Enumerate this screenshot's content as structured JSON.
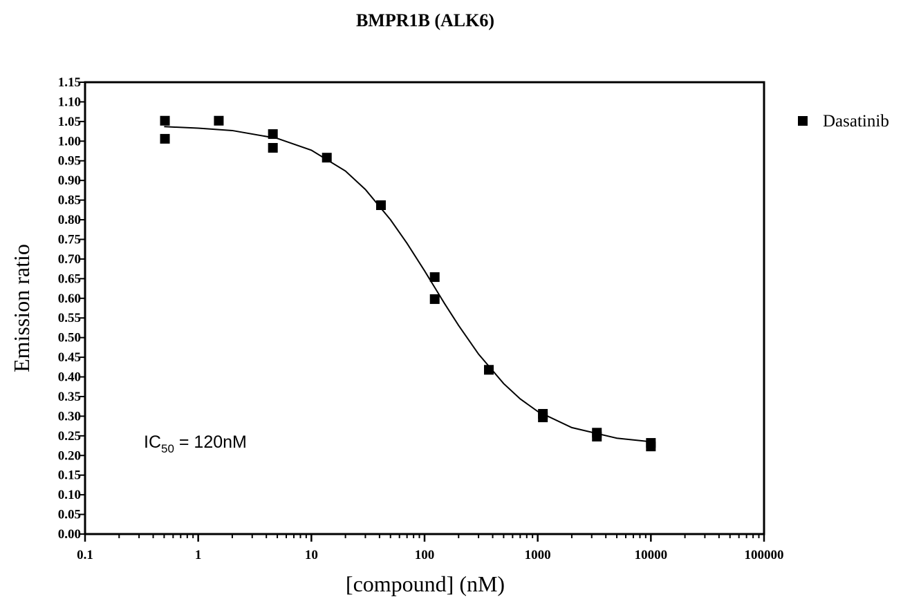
{
  "chart_data": {
    "type": "scatter",
    "title": "BMPR1B (ALK6)",
    "xlabel": "[compound] (nM)",
    "ylabel": "Emission ratio",
    "xscale": "log",
    "xlim": [
      0.1,
      100000
    ],
    "xticks": [
      0.1,
      1,
      10,
      100,
      1000,
      10000,
      100000
    ],
    "xminorticks": [
      0.2,
      0.3,
      0.4,
      0.5,
      0.6,
      0.7,
      0.8,
      0.9,
      2,
      3,
      4,
      5,
      6,
      7,
      8,
      9,
      20,
      30,
      40,
      50,
      60,
      70,
      80,
      90,
      200,
      300,
      400,
      500,
      600,
      700,
      800,
      900,
      2000,
      3000,
      4000,
      5000,
      6000,
      7000,
      8000,
      9000,
      20000,
      30000,
      40000,
      50000,
      60000,
      70000,
      80000,
      90000
    ],
    "ylim": [
      0,
      1.15
    ],
    "yticks": [
      {
        "value": 0,
        "label": "0.00"
      },
      {
        "value": 0.05,
        "label": "0.05"
      },
      {
        "value": 0.1,
        "label": "0.10"
      },
      {
        "value": 0.15,
        "label": "0.15"
      },
      {
        "value": 0.2,
        "label": "0.20"
      },
      {
        "value": 0.25,
        "label": "0.25"
      },
      {
        "value": 0.3,
        "label": "0.30"
      },
      {
        "value": 0.35,
        "label": "0.35"
      },
      {
        "value": 0.4,
        "label": "0.40"
      },
      {
        "value": 0.45,
        "label": "0.45"
      },
      {
        "value": 0.5,
        "label": "0.50"
      },
      {
        "value": 0.55,
        "label": "0.55"
      },
      {
        "value": 0.6,
        "label": "0.60"
      },
      {
        "value": 0.65,
        "label": "0.65"
      },
      {
        "value": 0.7,
        "label": "0.70"
      },
      {
        "value": 0.75,
        "label": "0.75"
      },
      {
        "value": 0.8,
        "label": "0.80"
      },
      {
        "value": 0.85,
        "label": "0.85"
      },
      {
        "value": 0.9,
        "label": "0.90"
      },
      {
        "value": 0.95,
        "label": "0.95"
      },
      {
        "value": 1,
        "label": "1.00"
      },
      {
        "value": 1.05,
        "label": "1.05"
      },
      {
        "value": 1.1,
        "label": "1.10"
      },
      {
        "value": 1.15,
        "label": "1.15"
      }
    ],
    "series": [
      {
        "name": "Dasatinib",
        "color": "#000000",
        "x": [
          0.508,
          0.508,
          1.52,
          4.57,
          4.57,
          13.7,
          41.2,
          123,
          123,
          370,
          1111,
          1111,
          3333,
          3333,
          10000,
          10000
        ],
        "values": [
          1.052,
          1.006,
          1.052,
          1.018,
          0.983,
          0.958,
          0.837,
          0.654,
          0.598,
          0.418,
          0.306,
          0.297,
          0.258,
          0.248,
          0.232,
          0.223
        ]
      }
    ],
    "fit_curve": {
      "x": [
        0.5,
        1,
        2,
        5,
        10,
        20,
        30,
        50,
        70,
        100,
        150,
        200,
        300,
        500,
        700,
        1000,
        2000,
        5000,
        10000
      ],
      "values": [
        1.037,
        1.033,
        1.027,
        1.007,
        0.977,
        0.924,
        0.877,
        0.8,
        0.74,
        0.67,
        0.587,
        0.531,
        0.458,
        0.383,
        0.344,
        0.312,
        0.271,
        0.244,
        0.235
      ]
    },
    "annotation": {
      "text": "IC",
      "subscript": "50",
      "suffix": " = 120nM"
    },
    "legend": "outside-right"
  }
}
